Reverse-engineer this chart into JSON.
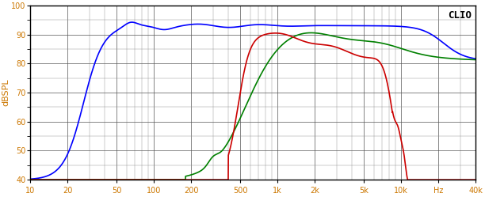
{
  "title": "CLIO",
  "ylabel": "dBSPL",
  "xlabel": "Hz",
  "xlim_log": [
    10,
    40000
  ],
  "ylim": [
    40,
    100
  ],
  "yticks": [
    40,
    50,
    60,
    70,
    80,
    90,
    100
  ],
  "xticks": [
    10,
    20,
    50,
    100,
    200,
    500,
    1000,
    2000,
    5000,
    10000,
    20000,
    40000
  ],
  "xticklabels": [
    "10",
    "20",
    "50",
    "100",
    "200",
    "500",
    "1k",
    "2k",
    "5k",
    "10k",
    "Hz",
    "40k"
  ],
  "background_color": "#ffffff",
  "grid_color": "#000000",
  "line_colors": [
    "#0000ff",
    "#008000",
    "#cc0000"
  ],
  "line_width": 1.2
}
